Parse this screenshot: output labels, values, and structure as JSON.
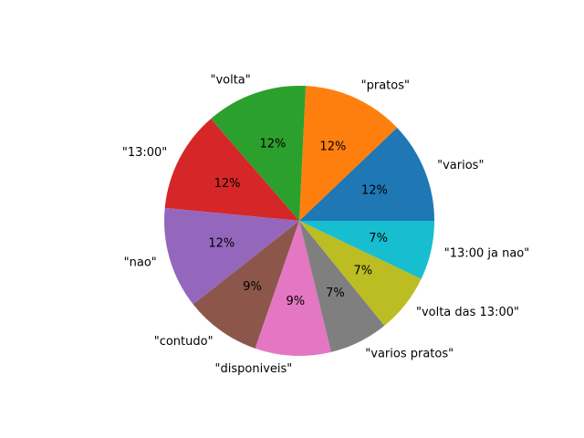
{
  "chart_data": {
    "type": "pie",
    "start_angle_deg": 0,
    "direction": "counterclockwise",
    "slices": [
      {
        "label": "\"varios\"",
        "value": 12,
        "pct_label": "12%",
        "color": "#1f77b4"
      },
      {
        "label": "\"pratos\"",
        "value": 12,
        "pct_label": "12%",
        "color": "#ff7f0e"
      },
      {
        "label": "\"volta\"",
        "value": 12,
        "pct_label": "12%",
        "color": "#2ca02c"
      },
      {
        "label": "\"13:00\"",
        "value": 12,
        "pct_label": "12%",
        "color": "#d62728"
      },
      {
        "label": "\"nao\"",
        "value": 12,
        "pct_label": "12%",
        "color": "#9467bd"
      },
      {
        "label": "\"contudo\"",
        "value": 9,
        "pct_label": "9%",
        "color": "#8c564b"
      },
      {
        "label": "\"disponiveis\"",
        "value": 9,
        "pct_label": "9%",
        "color": "#e377c2"
      },
      {
        "label": "\"varios pratos\"",
        "value": 7,
        "pct_label": "7%",
        "color": "#7f7f7f"
      },
      {
        "label": "\"volta das 13:00\"",
        "value": 7,
        "pct_label": "7%",
        "color": "#bcbd22"
      },
      {
        "label": "\"13:00 ja nao\"",
        "value": 7,
        "pct_label": "7%",
        "color": "#17becf"
      }
    ]
  }
}
